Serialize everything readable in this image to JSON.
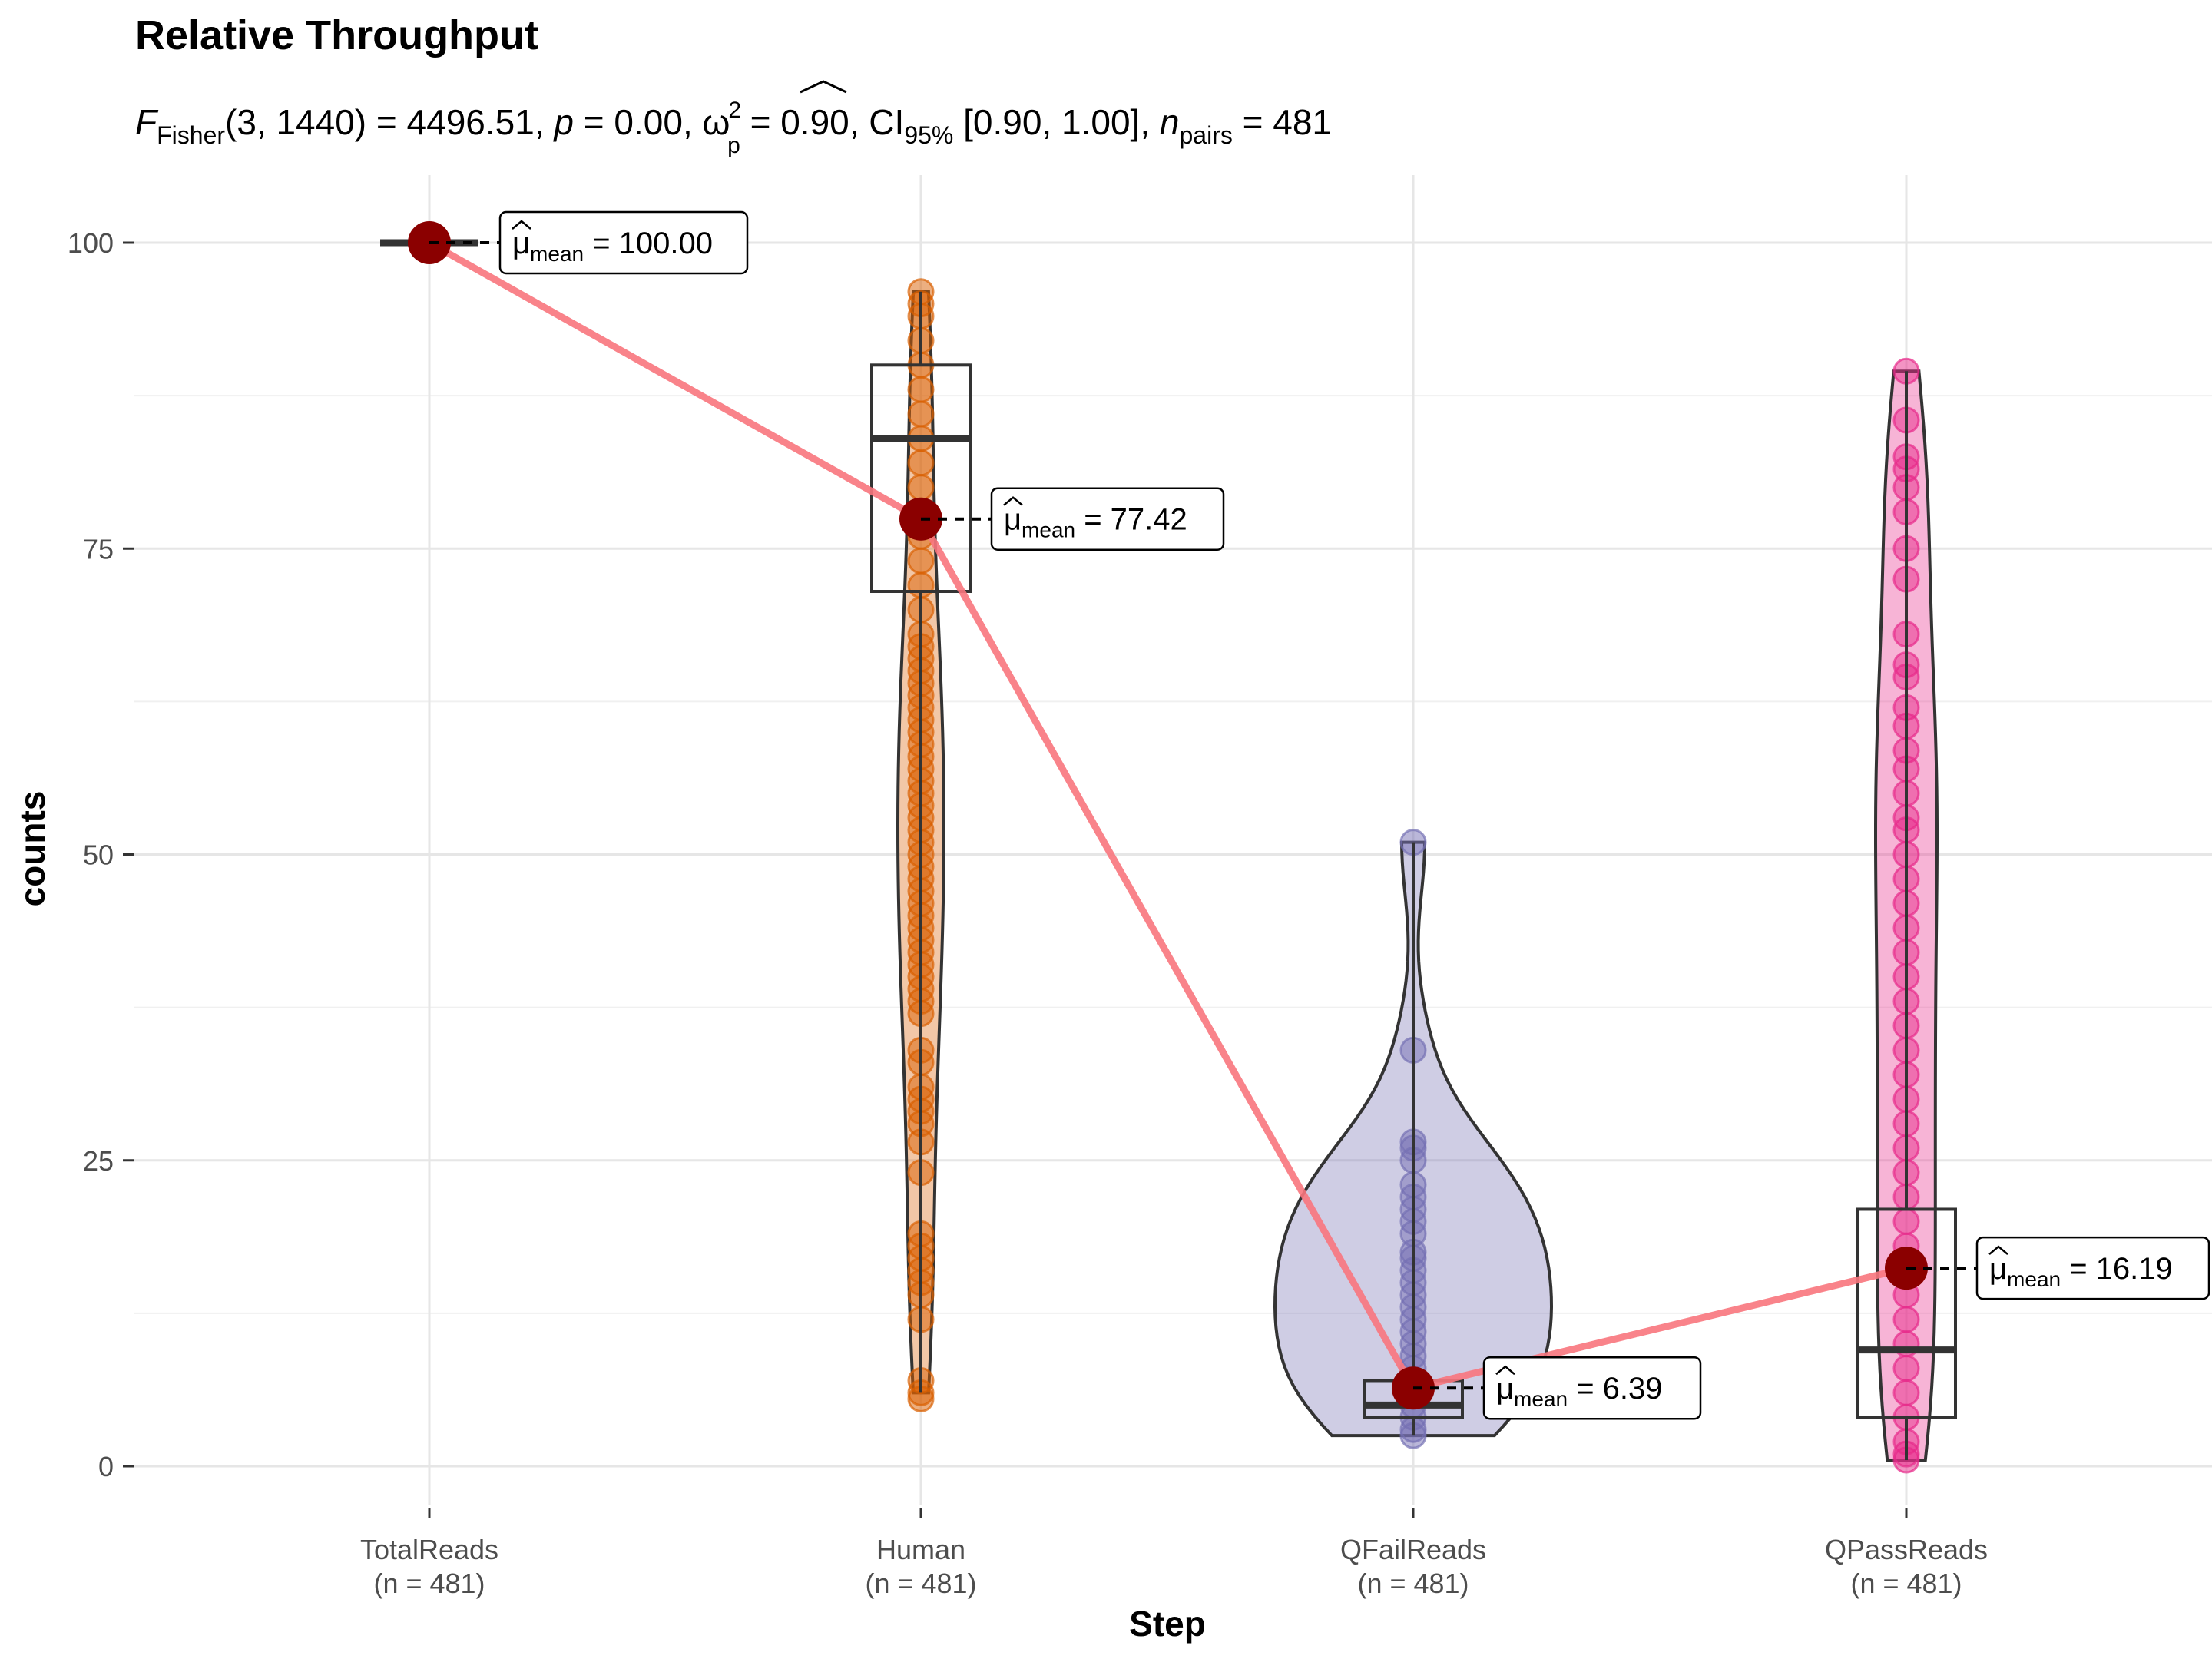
{
  "chart_data": {
    "type": "violin-box-scatter",
    "title": "Relative Throughput",
    "subtitle": {
      "F": "F",
      "F_sub": "Fisher",
      "stat": "(3, 1440) = 4496.51, ",
      "p_sym": "p",
      "p_val": " = 0.00, ",
      "omega": "ω",
      "omega_sup": "2",
      "omega_sub": "p",
      "omega_val": " = 0.90, CI",
      "ci_sub": "95%",
      "ci_val": " [0.90, 1.00], ",
      "n_sym": "n",
      "n_sub": "pairs",
      "n_val": " = 481"
    },
    "xlabel": "Step",
    "ylabel": "counts",
    "ylim": [
      -4,
      107
    ],
    "yticks": [
      0,
      25,
      50,
      75,
      100
    ],
    "ytick_labels": [
      "0",
      "25",
      "50",
      "75",
      "100"
    ],
    "grid": true,
    "legend": "none",
    "mean_line_color": "#f8767d",
    "mean_point_color": "#8b0000",
    "categories": [
      {
        "name": "TotalReads",
        "n_label": "(n = 481)",
        "color": "#1b9e77",
        "mean": 100.0,
        "mean_label_mu": "μ",
        "mean_label_sub": "mean",
        "mean_label_val": " = 100.00",
        "box": {
          "q1": 100,
          "median": 100,
          "q3": 100,
          "whisker_low": 100,
          "whisker_high": 100
        },
        "points": [
          100
        ]
      },
      {
        "name": "Human",
        "n_label": "(n = 481)",
        "color": "#d95f02",
        "mean": 77.42,
        "mean_label_mu": "μ",
        "mean_label_sub": "mean",
        "mean_label_val": " = 77.42",
        "box": {
          "q1": 71.5,
          "median": 84,
          "q3": 90,
          "whisker_low": 6,
          "whisker_high": 96
        },
        "points": [
          96,
          95,
          94,
          92,
          90,
          88,
          86,
          84,
          82,
          80,
          78,
          76,
          74,
          72,
          70,
          68,
          67,
          66,
          65,
          64,
          63,
          62,
          61,
          60,
          59,
          58,
          57,
          56,
          55,
          54,
          53,
          52,
          51,
          50,
          49,
          48,
          47,
          46,
          45,
          44,
          43,
          42,
          41,
          40,
          39,
          38,
          37,
          34,
          33,
          31,
          30,
          29,
          28,
          26.5,
          24,
          19,
          18,
          17,
          16,
          15,
          14,
          12,
          7,
          6,
          5.5
        ]
      },
      {
        "name": "QFailReads",
        "n_label": "(n = 481)",
        "color": "#7570b3",
        "mean": 6.39,
        "mean_label_mu": "μ",
        "mean_label_sub": "mean",
        "mean_label_val": " = 6.39",
        "box": {
          "q1": 4,
          "median": 5,
          "q3": 7,
          "whisker_low": 2.5,
          "whisker_high": 51
        },
        "points": [
          51,
          34,
          26.5,
          26,
          25,
          23,
          22,
          21,
          20,
          19,
          17.5,
          17,
          16,
          15,
          14,
          13,
          12,
          11,
          10,
          9,
          8,
          7,
          6,
          5,
          4,
          3,
          2.5
        ]
      },
      {
        "name": "QPassReads",
        "n_label": "(n = 481)",
        "color": "#e7298a",
        "mean": 16.19,
        "mean_label_mu": "μ",
        "mean_label_sub": "mean",
        "mean_label_val": " = 16.19",
        "box": {
          "q1": 4,
          "median": 9.5,
          "q3": 21,
          "whisker_low": 0.5,
          "whisker_high": 89.5
        },
        "points": [
          89.5,
          85.5,
          82.5,
          81.5,
          80,
          78,
          75,
          72.5,
          68,
          65.5,
          64.5,
          62,
          60.5,
          58.5,
          57,
          55,
          53,
          52,
          50,
          48,
          46,
          44,
          42,
          40,
          38,
          36,
          34,
          32,
          30,
          28,
          26,
          24,
          22,
          20,
          18,
          16,
          14,
          12,
          10,
          8,
          6,
          4,
          2,
          1,
          0.5
        ]
      }
    ]
  }
}
